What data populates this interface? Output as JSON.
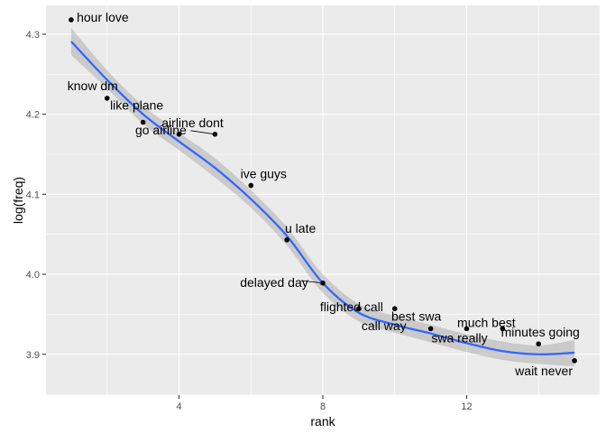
{
  "chart_data": {
    "type": "scatter",
    "xlabel": "rank",
    "ylabel": "log(freq)",
    "xlim": [
      0.3,
      15.7
    ],
    "ylim": [
      3.849,
      4.336
    ],
    "x_ticks": [
      4,
      8,
      12
    ],
    "x_tick_labels": [
      "4",
      "8",
      "12"
    ],
    "y_ticks": [
      3.9,
      4.0,
      4.1,
      4.2,
      4.3
    ],
    "y_tick_labels": [
      "3.9",
      "4.0",
      "4.1",
      "4.2",
      "4.3"
    ],
    "grid": true,
    "legend": "none",
    "smooth": {
      "method": "loess",
      "color": "#3366FF",
      "band_color": "#999999"
    },
    "points": [
      {
        "x": 1,
        "y": 4.318,
        "label": "hour love"
      },
      {
        "x": 2,
        "y": 4.22,
        "label": "know dm"
      },
      {
        "x": 3,
        "y": 4.19,
        "label": "like plane"
      },
      {
        "x": 4,
        "y": 4.175,
        "label": "airline dont"
      },
      {
        "x": 5,
        "y": 4.175,
        "label": "go airline"
      },
      {
        "x": 6,
        "y": 4.111,
        "label": "ive guys"
      },
      {
        "x": 7,
        "y": 4.043,
        "label": "u late"
      },
      {
        "x": 8,
        "y": 3.989,
        "label": "delayed day"
      },
      {
        "x": 9,
        "y": 3.957,
        "label": "flighted call"
      },
      {
        "x": 10,
        "y": 3.957,
        "label": "call way"
      },
      {
        "x": 11,
        "y": 3.932,
        "label": "best swa"
      },
      {
        "x": 12,
        "y": 3.932,
        "label": "swa really"
      },
      {
        "x": 13,
        "y": 3.932,
        "label": "much best"
      },
      {
        "x": 14,
        "y": 3.913,
        "label": "minutes going"
      },
      {
        "x": 15,
        "y": 3.892,
        "label": "wait never"
      }
    ],
    "smooth_curve": [
      {
        "x": 1,
        "y": 4.291,
        "lo": 4.274,
        "hi": 4.308
      },
      {
        "x": 2,
        "y": 4.243,
        "lo": 4.232,
        "hi": 4.255
      },
      {
        "x": 3,
        "y": 4.2,
        "lo": 4.188,
        "hi": 4.211
      },
      {
        "x": 4,
        "y": 4.166,
        "lo": 4.155,
        "hi": 4.177
      },
      {
        "x": 5,
        "y": 4.133,
        "lo": 4.121,
        "hi": 4.145
      },
      {
        "x": 6,
        "y": 4.094,
        "lo": 4.083,
        "hi": 4.105
      },
      {
        "x": 7,
        "y": 4.048,
        "lo": 4.036,
        "hi": 4.059
      },
      {
        "x": 8,
        "y": 3.989,
        "lo": 3.977,
        "hi": 4.0
      },
      {
        "x": 9,
        "y": 3.952,
        "lo": 3.941,
        "hi": 3.963
      },
      {
        "x": 10,
        "y": 3.937,
        "lo": 3.927,
        "hi": 3.948
      },
      {
        "x": 11,
        "y": 3.926,
        "lo": 3.915,
        "hi": 3.937
      },
      {
        "x": 12,
        "y": 3.914,
        "lo": 3.903,
        "hi": 3.925
      },
      {
        "x": 13,
        "y": 3.904,
        "lo": 3.893,
        "hi": 3.916
      },
      {
        "x": 14,
        "y": 3.9,
        "lo": 3.888,
        "hi": 3.911
      },
      {
        "x": 15,
        "y": 3.902,
        "lo": 3.885,
        "hi": 3.918
      }
    ]
  }
}
